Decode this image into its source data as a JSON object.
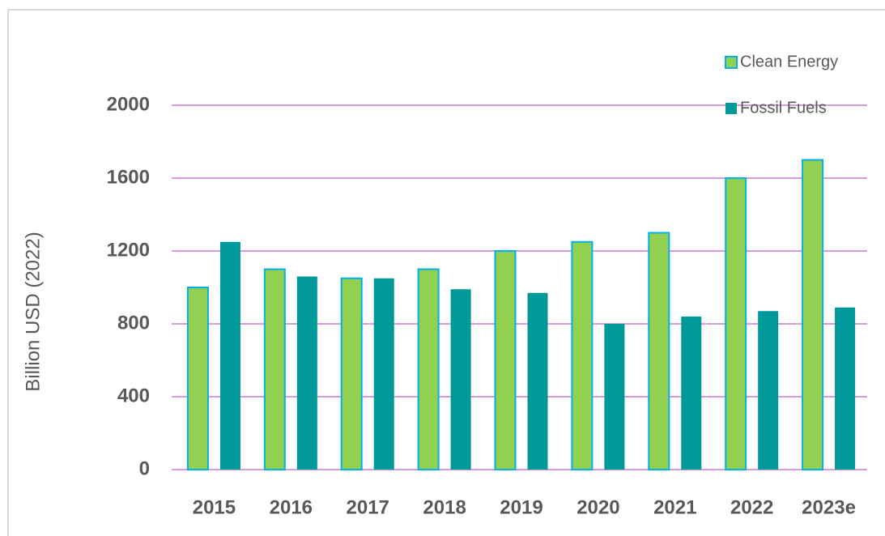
{
  "chart_data": {
    "type": "bar",
    "y_label": "Billion USD (2022)",
    "categories": [
      "2015",
      "2016",
      "2017",
      "2018",
      "2019",
      "2020",
      "2021",
      "2022",
      "2023e"
    ],
    "series": [
      {
        "name": "Clean Energy",
        "color": "#92d050",
        "edgecolor": "#00b0f0",
        "values": [
          1000,
          1100,
          1050,
          1100,
          1200,
          1250,
          1300,
          1600,
          1700
        ]
      },
      {
        "name": "Fossil Fuels",
        "color": "#009999",
        "values": [
          1250,
          1060,
          1050,
          990,
          970,
          800,
          840,
          870,
          890
        ]
      }
    ],
    "ylim": [
      0,
      2000
    ],
    "yticks": [
      0,
      400,
      800,
      1200,
      1600,
      2000
    ],
    "grid": true,
    "grid_color": "#d99ae0",
    "legend": "upper right"
  }
}
